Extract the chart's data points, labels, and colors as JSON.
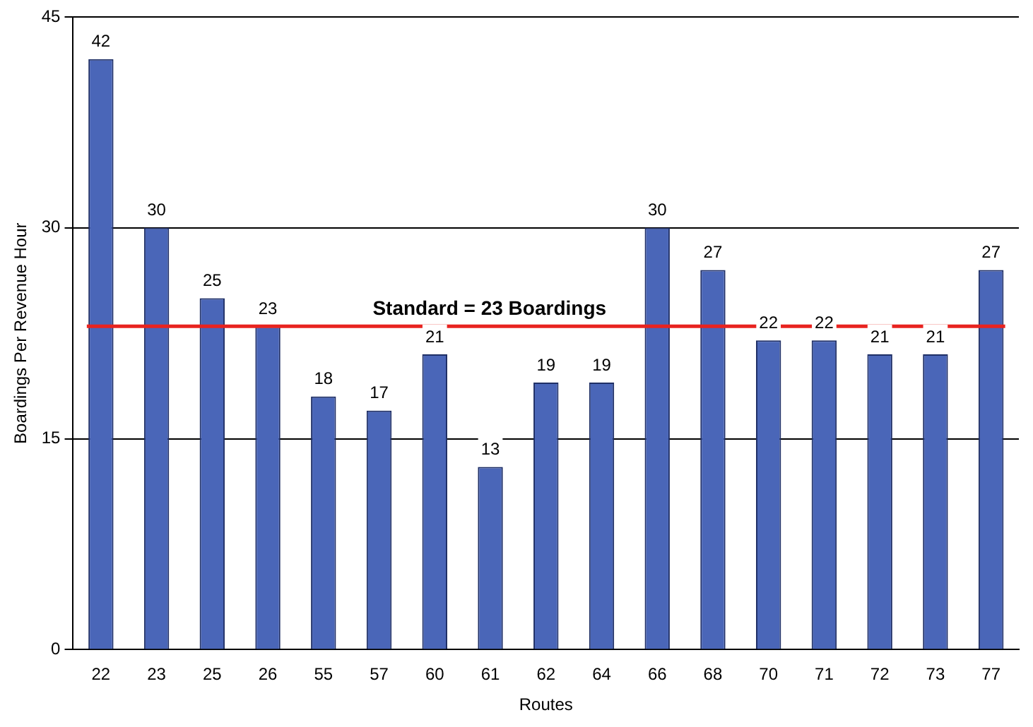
{
  "chart_data": {
    "type": "bar",
    "xlabel": "Routes",
    "ylabel": "Boardings Per Revenue Hour",
    "categories": [
      "22",
      "23",
      "25",
      "26",
      "55",
      "57",
      "60",
      "61",
      "62",
      "64",
      "66",
      "68",
      "70",
      "71",
      "72",
      "73",
      "77"
    ],
    "values": [
      42,
      30,
      25,
      23,
      18,
      17,
      21,
      13,
      19,
      19,
      30,
      27,
      22,
      22,
      21,
      21,
      27
    ],
    "color": "#4a66b8",
    "data_labels": true,
    "ylim": [
      0,
      45
    ],
    "yticks": [
      0,
      15,
      30,
      45
    ],
    "grid": "y",
    "legend": false,
    "ref_lines": [
      {
        "axis": "y",
        "value": 23,
        "label": "Standard = 23 Boardings",
        "color": "#e8231f"
      }
    ]
  }
}
